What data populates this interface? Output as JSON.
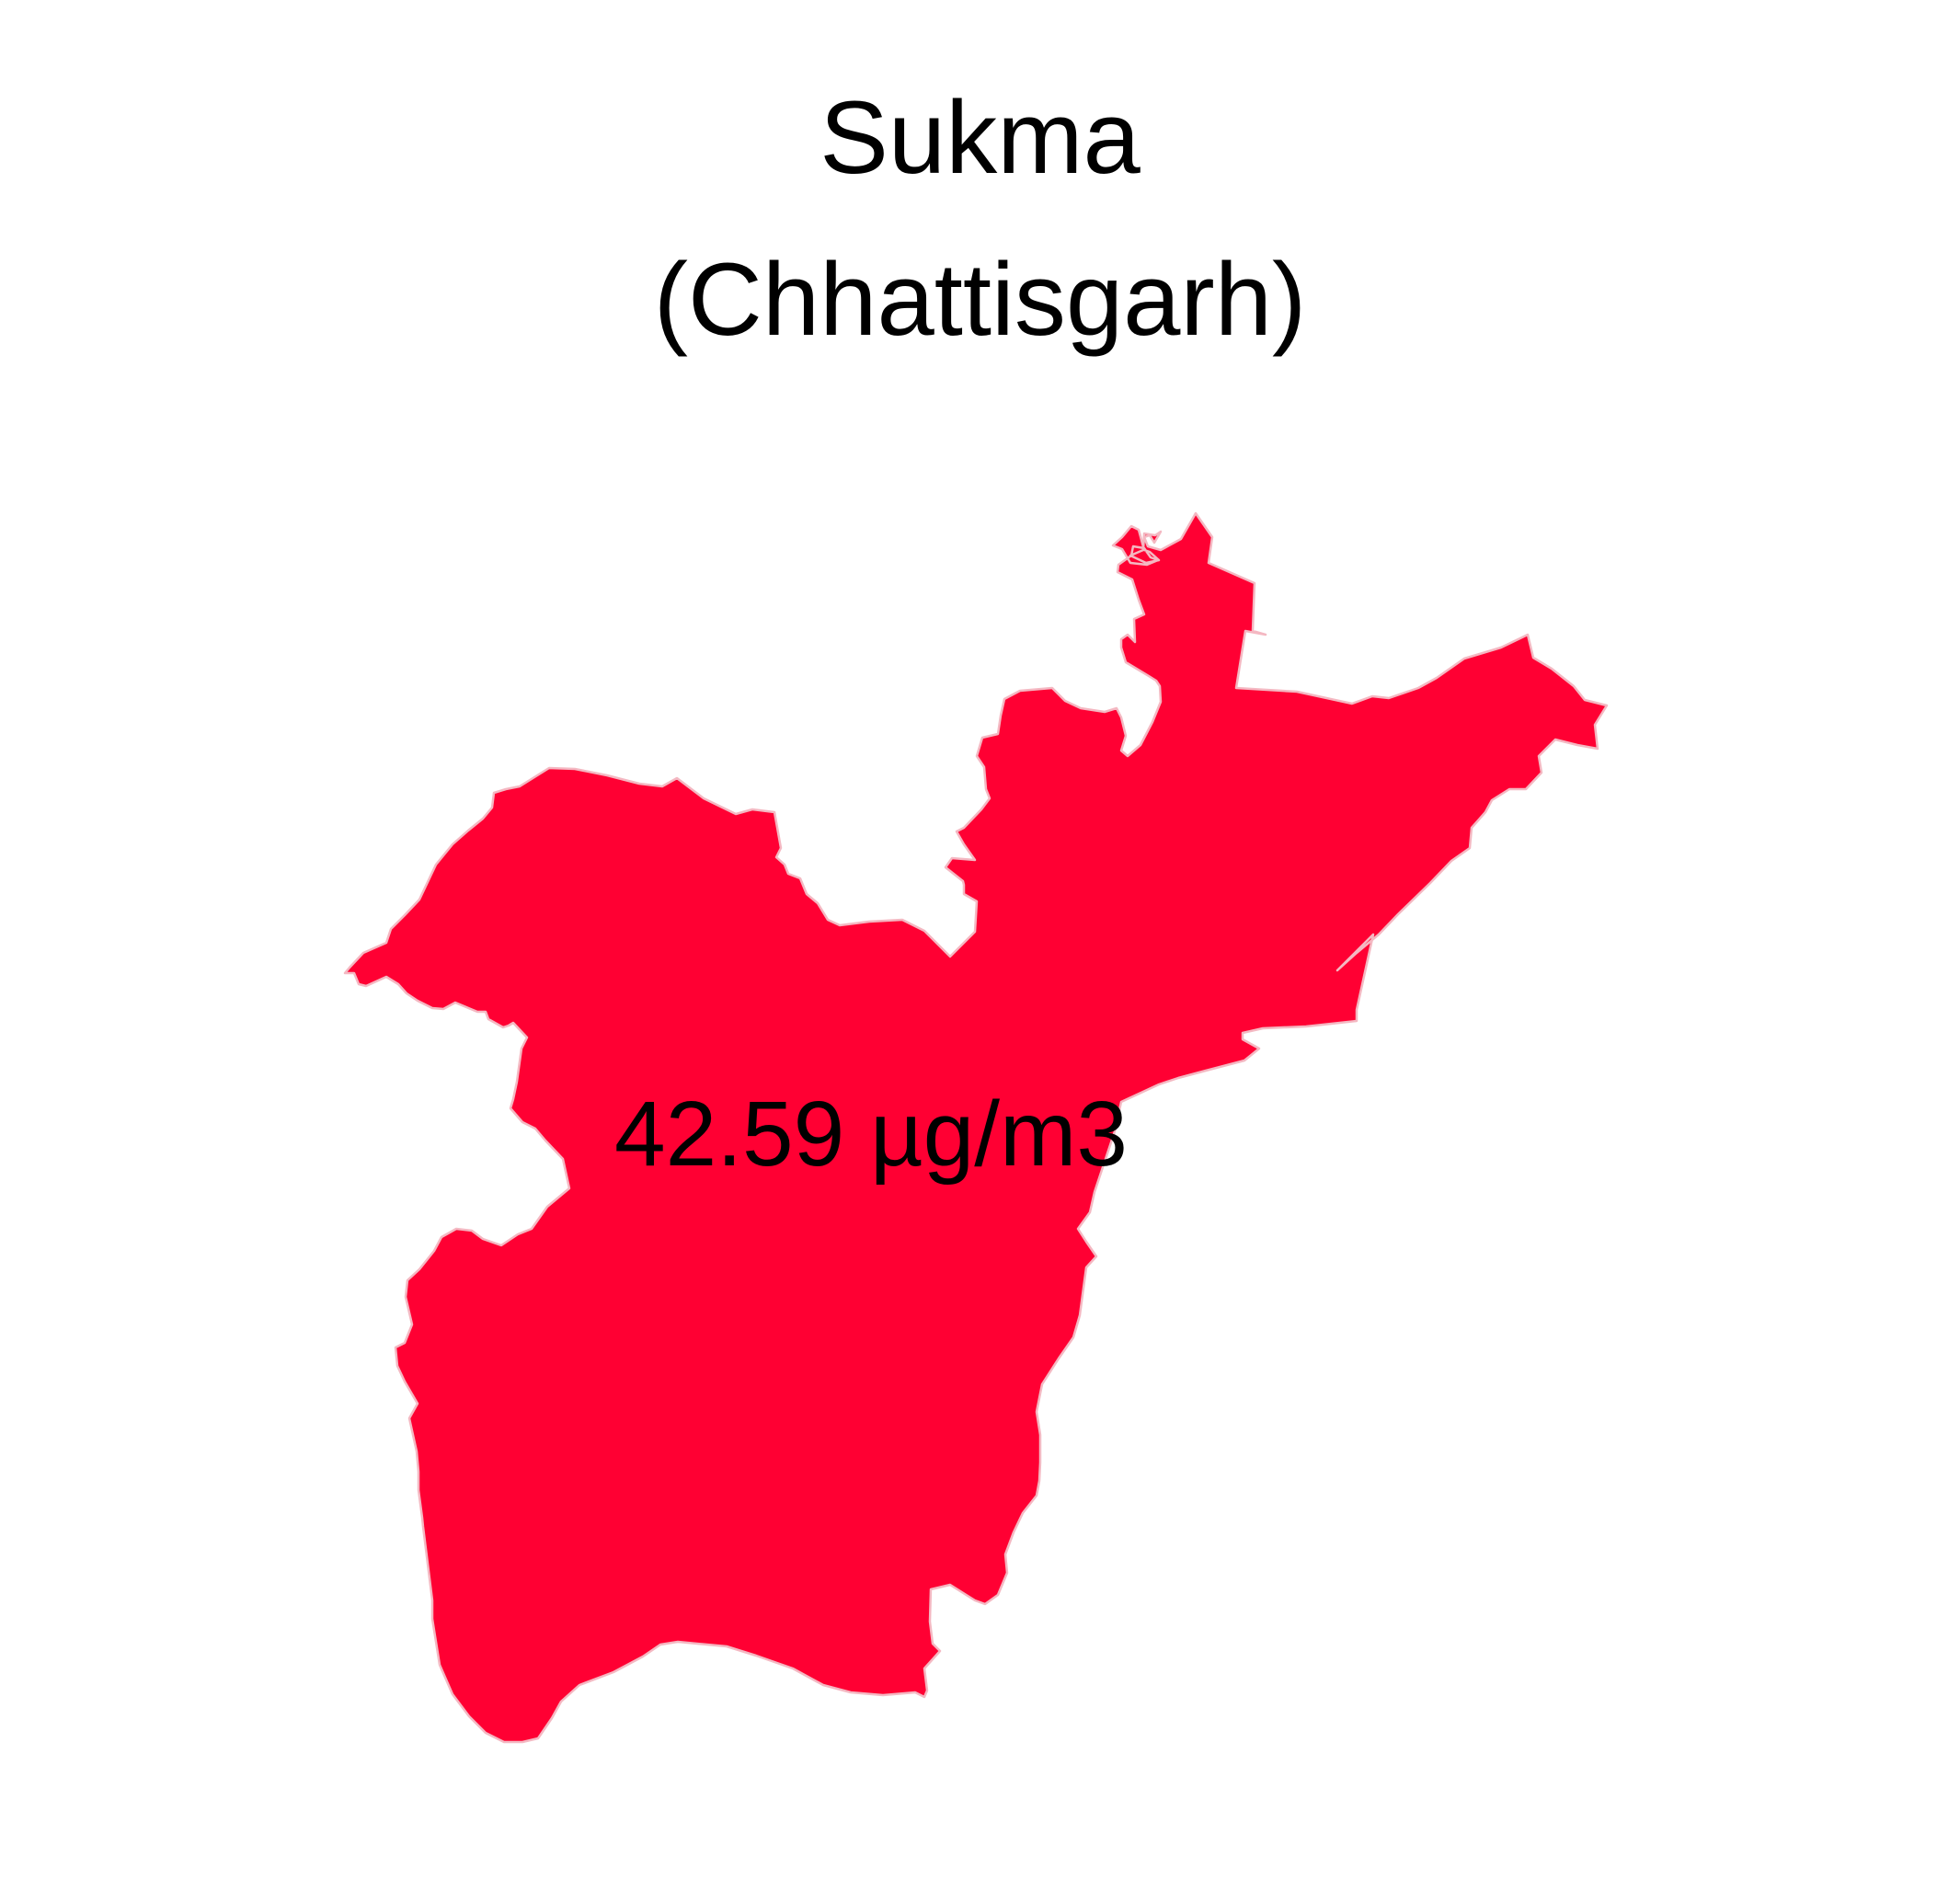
{
  "title": {
    "line1": "Sukma",
    "line2": "(Chhattisgarh)"
  },
  "district": {
    "value_label": "42.59 µg/m3",
    "fill_color": "#ff0033"
  }
}
